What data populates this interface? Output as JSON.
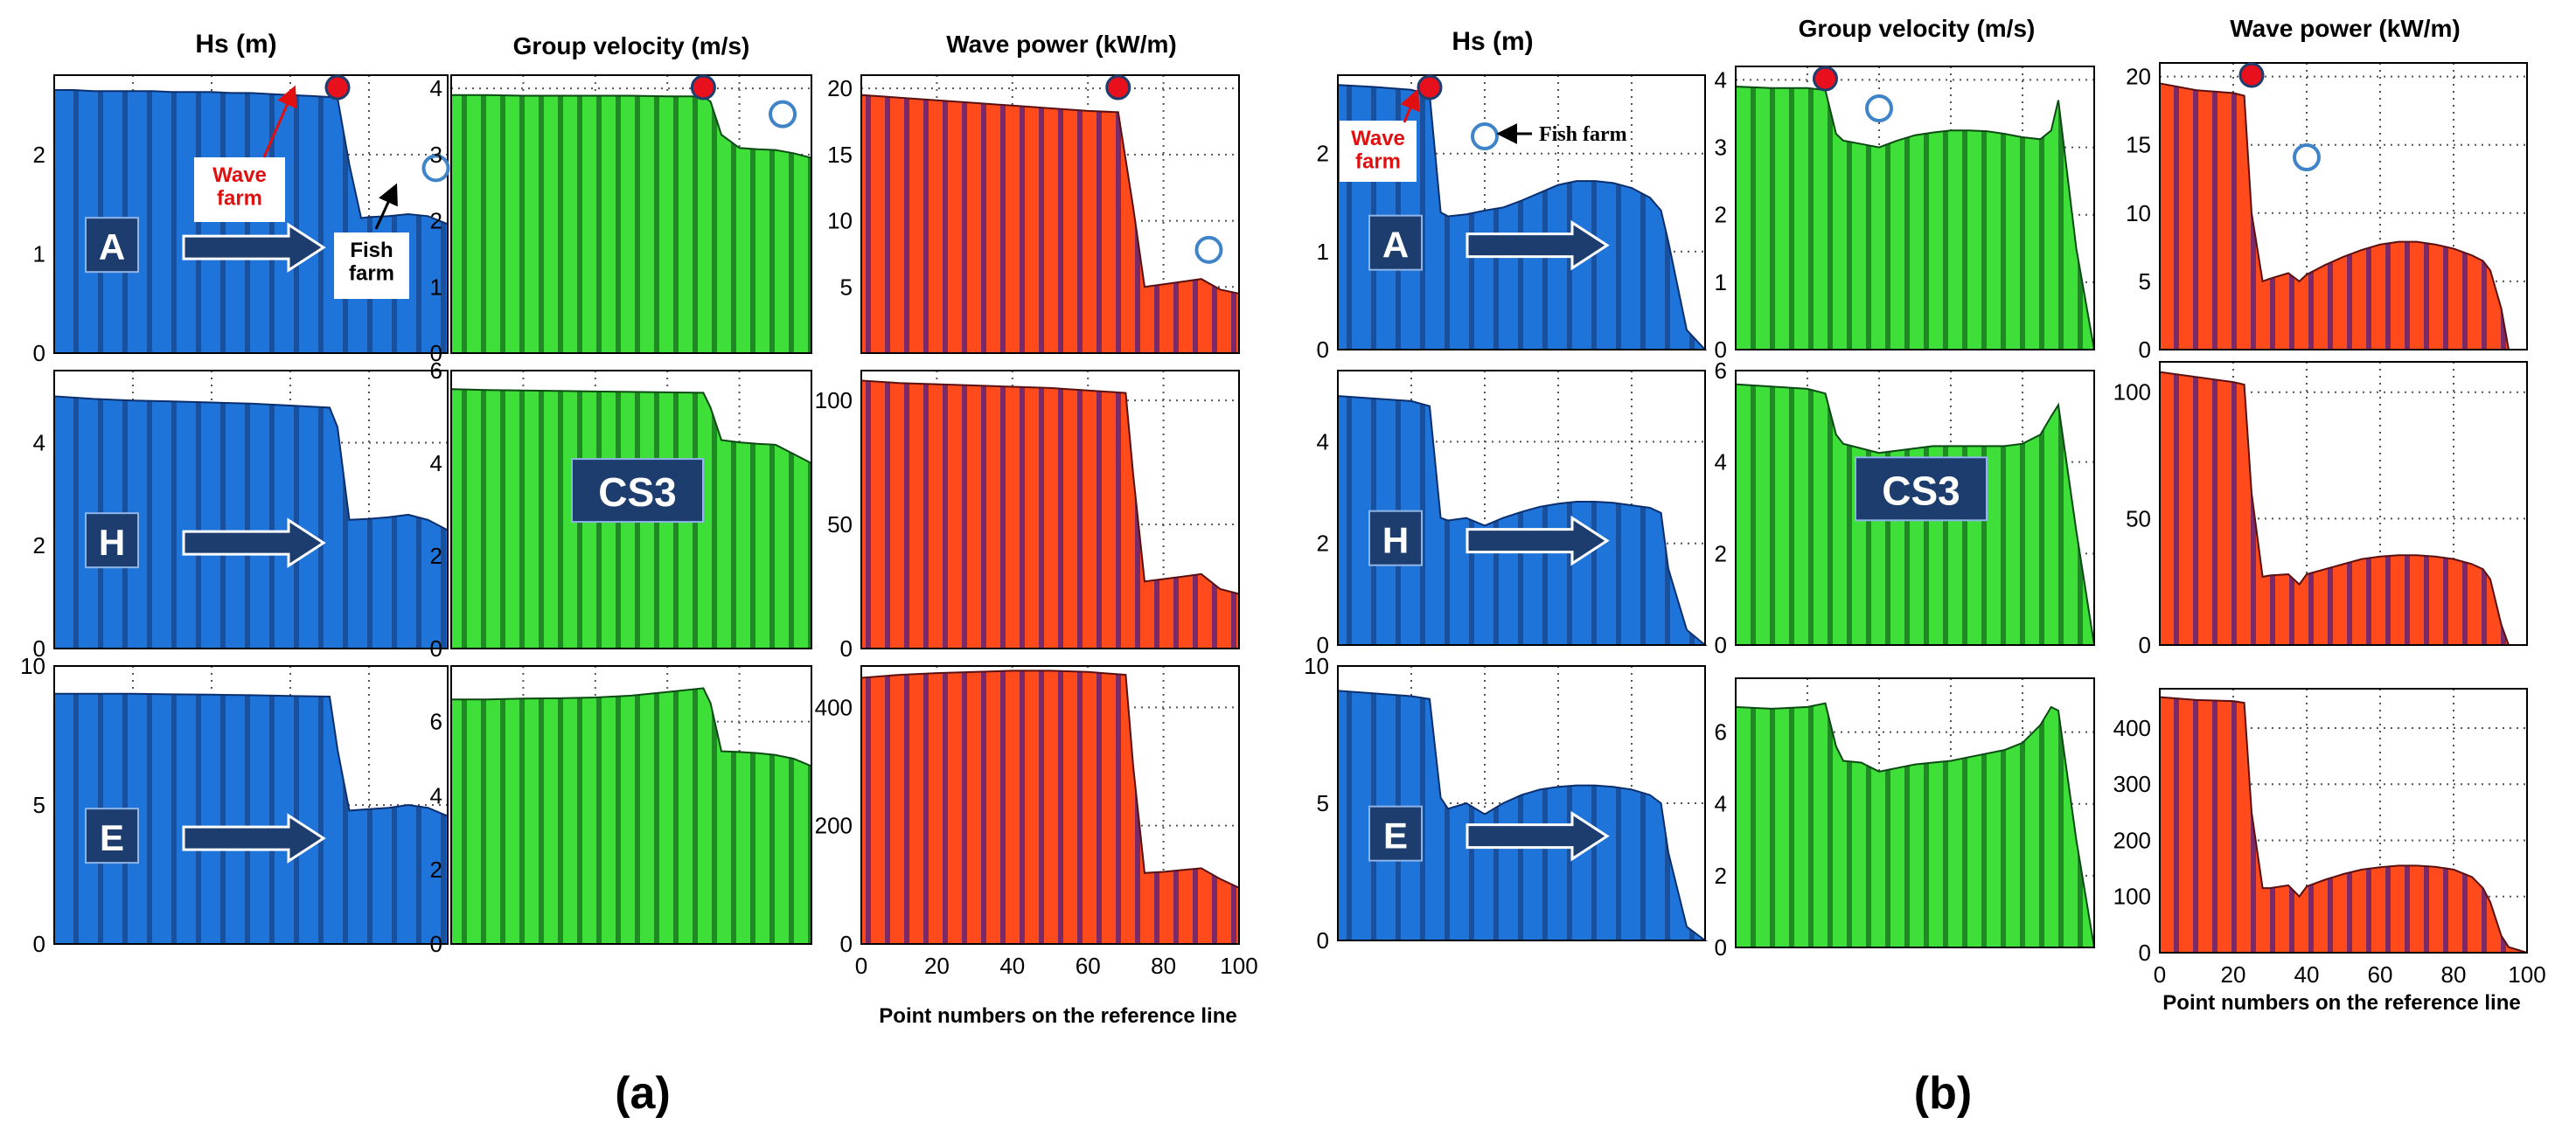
{
  "column_titles": {
    "hs": "Hs (m)",
    "cg": "Group velocity (m/s)",
    "wp": "Wave power (kW/m)"
  },
  "xlabel": "Point numbers on the reference line",
  "panel_labels": {
    "a": "(a)",
    "b": "(b)"
  },
  "case_labels": [
    "A",
    "H",
    "E"
  ],
  "cs_label": "CS3",
  "annotations": {
    "wave_farm": "Wave farm",
    "fish_farm": "Fish farm"
  },
  "colors": {
    "hs_fill": "#1e74d8",
    "hs_stripe": "#1a4f9c",
    "cg_fill": "#3fdf3a",
    "cg_stripe": "#1f8a24",
    "wp_fill": "#ff4a1c",
    "wp_stripe": "#7a2a66",
    "label_box": "#1d3d6e",
    "arrow": "#1d3d6e",
    "wave_farm_dot": "#e8101c",
    "fish_farm_ring": "#3f84c8",
    "annotation_red": "#e01010"
  },
  "chart_data": [
    {
      "type": "area",
      "title": "Hs (m)",
      "set": "a",
      "case": "A",
      "x": [
        0,
        5,
        10,
        15,
        20,
        25,
        30,
        35,
        40,
        45,
        50,
        55,
        60,
        65,
        70,
        72,
        75,
        78,
        80,
        85,
        90,
        95,
        100
      ],
      "values": [
        2.65,
        2.65,
        2.64,
        2.64,
        2.64,
        2.64,
        2.63,
        2.63,
        2.63,
        2.62,
        2.62,
        2.61,
        2.6,
        2.59,
        2.58,
        2.57,
        1.9,
        1.36,
        1.37,
        1.38,
        1.4,
        1.38,
        1.3
      ],
      "xlim": [
        0,
        100
      ],
      "ylim": [
        0,
        2.8
      ],
      "yticks": [
        0,
        1,
        2
      ],
      "annotations": {
        "wave_farm_x": 72,
        "fish_farm_x": 97
      }
    },
    {
      "type": "area",
      "title": "Group velocity (m/s)",
      "set": "a",
      "case": "A",
      "x": [
        0,
        10,
        20,
        30,
        40,
        50,
        60,
        70,
        72,
        75,
        80,
        85,
        90,
        95,
        100
      ],
      "values": [
        3.9,
        3.9,
        3.89,
        3.89,
        3.89,
        3.89,
        3.88,
        3.88,
        3.8,
        3.3,
        3.1,
        3.08,
        3.07,
        3.02,
        2.95
      ],
      "xlim": [
        0,
        100
      ],
      "ylim": [
        0,
        4.2
      ],
      "yticks": [
        0,
        1,
        2,
        3,
        4
      ],
      "annotations": {
        "wave_farm_x": 70,
        "fish_farm_x": 92
      }
    },
    {
      "type": "area",
      "title": "Wave power (kW/m)",
      "set": "a",
      "case": "A",
      "x": [
        0,
        10,
        20,
        30,
        40,
        50,
        60,
        68,
        72,
        75,
        80,
        85,
        90,
        95,
        100
      ],
      "values": [
        19.5,
        19.3,
        19.1,
        18.9,
        18.7,
        18.5,
        18.3,
        18.2,
        11.0,
        5.0,
        5.2,
        5.4,
        5.6,
        4.8,
        4.5
      ],
      "xlim": [
        0,
        100
      ],
      "ylim": [
        0,
        21
      ],
      "yticks": [
        5,
        10,
        15,
        20
      ],
      "annotations": {
        "wave_farm_x": 68,
        "fish_farm_x": 92
      }
    },
    {
      "type": "area",
      "title": "Hs (m)",
      "set": "a",
      "case": "H",
      "x": [
        0,
        10,
        20,
        30,
        40,
        50,
        60,
        70,
        72,
        75,
        80,
        85,
        90,
        95,
        100
      ],
      "values": [
        4.9,
        4.85,
        4.82,
        4.8,
        4.78,
        4.76,
        4.72,
        4.68,
        4.3,
        2.5,
        2.52,
        2.55,
        2.6,
        2.5,
        2.3
      ],
      "xlim": [
        0,
        100
      ],
      "ylim": [
        0,
        5.4
      ],
      "yticks": [
        0,
        2,
        4
      ]
    },
    {
      "type": "area",
      "title": "Group velocity (m/s)",
      "set": "a",
      "case": "H",
      "x": [
        0,
        10,
        20,
        30,
        40,
        50,
        60,
        70,
        72,
        75,
        80,
        85,
        90,
        95,
        100
      ],
      "values": [
        5.6,
        5.58,
        5.57,
        5.56,
        5.55,
        5.54,
        5.53,
        5.52,
        5.2,
        4.5,
        4.45,
        4.42,
        4.4,
        4.2,
        4.0
      ],
      "xlim": [
        0,
        100
      ],
      "ylim": [
        0,
        6
      ],
      "yticks": [
        0,
        2,
        4,
        6
      ]
    },
    {
      "type": "area",
      "title": "Wave power (kW/m)",
      "set": "a",
      "case": "H",
      "x": [
        0,
        10,
        20,
        30,
        40,
        50,
        60,
        70,
        72,
        75,
        80,
        85,
        90,
        95,
        100
      ],
      "values": [
        108,
        107,
        106.5,
        106,
        105.5,
        105,
        104,
        103,
        70,
        27,
        28,
        29,
        30,
        24,
        22
      ],
      "xlim": [
        0,
        100
      ],
      "ylim": [
        0,
        112
      ],
      "yticks": [
        0,
        50,
        100
      ]
    },
    {
      "type": "area",
      "title": "Hs (m)",
      "set": "a",
      "case": "E",
      "x": [
        0,
        10,
        20,
        30,
        40,
        50,
        60,
        70,
        72,
        75,
        80,
        85,
        90,
        95,
        100
      ],
      "values": [
        9.0,
        9.0,
        9.0,
        8.98,
        8.97,
        8.95,
        8.92,
        8.9,
        7.0,
        4.8,
        4.85,
        4.9,
        5.0,
        4.9,
        4.6
      ],
      "xlim": [
        0,
        100
      ],
      "ylim": [
        0,
        10
      ],
      "yticks": [
        0,
        5,
        10
      ]
    },
    {
      "type": "area",
      "title": "Group velocity (m/s)",
      "set": "a",
      "case": "E",
      "x": [
        0,
        10,
        20,
        30,
        40,
        50,
        60,
        70,
        72,
        75,
        80,
        85,
        90,
        95,
        100
      ],
      "values": [
        6.6,
        6.6,
        6.62,
        6.63,
        6.65,
        6.7,
        6.8,
        6.9,
        6.5,
        5.2,
        5.18,
        5.15,
        5.1,
        5.0,
        4.8
      ],
      "xlim": [
        0,
        100
      ],
      "ylim": [
        0,
        7.5
      ],
      "yticks": [
        0,
        2,
        4,
        6
      ]
    },
    {
      "type": "area",
      "title": "Wave power (kW/m)",
      "set": "a",
      "case": "E",
      "x": [
        0,
        10,
        20,
        30,
        40,
        50,
        60,
        70,
        72,
        75,
        80,
        85,
        90,
        95,
        100
      ],
      "values": [
        450,
        455,
        458,
        460,
        462,
        462,
        460,
        455,
        300,
        120,
        122,
        125,
        128,
        110,
        95
      ],
      "xlim": [
        0,
        100
      ],
      "ylim": [
        0,
        470
      ],
      "yticks": [
        0,
        200,
        400
      ],
      "xticks": [
        0,
        20,
        40,
        60,
        80,
        100
      ]
    },
    {
      "type": "area",
      "title": "Hs (m)",
      "set": "b",
      "case": "A",
      "x": [
        0,
        10,
        20,
        25,
        28,
        30,
        35,
        40,
        45,
        50,
        55,
        60,
        65,
        70,
        75,
        80,
        85,
        88,
        90,
        95,
        100
      ],
      "values": [
        2.7,
        2.68,
        2.65,
        2.6,
        1.4,
        1.36,
        1.38,
        1.42,
        1.45,
        1.52,
        1.6,
        1.68,
        1.72,
        1.72,
        1.7,
        1.65,
        1.55,
        1.42,
        1.1,
        0.2,
        0
      ],
      "xlim": [
        0,
        100
      ],
      "ylim": [
        0,
        2.8
      ],
      "yticks": [
        0,
        1,
        2
      ],
      "annotations": {
        "wave_farm_x": 25,
        "fish_farm_x": 40
      }
    },
    {
      "type": "area",
      "title": "Group velocity (m/s)",
      "set": "b",
      "case": "A",
      "x": [
        0,
        10,
        20,
        25,
        28,
        30,
        35,
        40,
        45,
        50,
        55,
        60,
        65,
        70,
        75,
        80,
        85,
        88,
        90,
        95,
        100
      ],
      "values": [
        3.9,
        3.88,
        3.88,
        3.85,
        3.2,
        3.1,
        3.05,
        3.0,
        3.1,
        3.18,
        3.22,
        3.25,
        3.25,
        3.24,
        3.2,
        3.15,
        3.12,
        3.25,
        3.7,
        1.5,
        0
      ],
      "xlim": [
        0,
        100
      ],
      "ylim": [
        0,
        4.2
      ],
      "yticks": [
        0,
        1,
        2,
        3,
        4
      ],
      "annotations": {
        "wave_farm_x": 25,
        "fish_farm_x": 40
      }
    },
    {
      "type": "area",
      "title": "Wave power (kW/m)",
      "set": "b",
      "case": "A",
      "x": [
        0,
        10,
        20,
        23,
        25,
        28,
        30,
        35,
        38,
        40,
        45,
        50,
        55,
        60,
        65,
        70,
        75,
        80,
        85,
        88,
        90,
        93,
        95
      ],
      "values": [
        19.5,
        19,
        18.8,
        18.6,
        10,
        5.0,
        5.2,
        5.6,
        5.0,
        5.5,
        6.2,
        6.8,
        7.3,
        7.7,
        7.9,
        7.9,
        7.7,
        7.4,
        6.9,
        6.5,
        5.8,
        3.0,
        0
      ],
      "xlim": [
        0,
        100
      ],
      "ylim": [
        0,
        21
      ],
      "yticks": [
        0,
        5,
        10,
        15,
        20
      ],
      "annotations": {
        "wave_farm_x": 25,
        "fish_farm_x": 40
      }
    },
    {
      "type": "area",
      "title": "Hs (m)",
      "set": "b",
      "case": "H",
      "x": [
        0,
        10,
        20,
        25,
        28,
        30,
        35,
        40,
        45,
        50,
        55,
        60,
        65,
        70,
        75,
        80,
        85,
        88,
        90,
        95,
        100
      ],
      "values": [
        4.9,
        4.85,
        4.8,
        4.7,
        2.5,
        2.45,
        2.5,
        2.35,
        2.5,
        2.62,
        2.72,
        2.78,
        2.82,
        2.82,
        2.8,
        2.75,
        2.7,
        2.6,
        1.5,
        0.3,
        0
      ],
      "xlim": [
        0,
        100
      ],
      "ylim": [
        0,
        5.4
      ],
      "yticks": [
        0,
        2,
        4
      ]
    },
    {
      "type": "area",
      "title": "Group velocity (m/s)",
      "set": "b",
      "case": "H",
      "x": [
        0,
        10,
        20,
        25,
        28,
        30,
        35,
        40,
        45,
        50,
        55,
        60,
        65,
        70,
        75,
        80,
        85,
        88,
        90,
        95,
        100
      ],
      "values": [
        5.7,
        5.65,
        5.6,
        5.5,
        4.6,
        4.4,
        4.3,
        4.2,
        4.25,
        4.3,
        4.35,
        4.35,
        4.35,
        4.35,
        4.35,
        4.4,
        4.6,
        5.0,
        5.25,
        2.5,
        0
      ],
      "xlim": [
        0,
        100
      ],
      "ylim": [
        0,
        6
      ],
      "yticks": [
        0,
        2,
        4,
        6
      ]
    },
    {
      "type": "area",
      "title": "Wave power (kW/m)",
      "set": "b",
      "case": "H",
      "x": [
        0,
        10,
        20,
        23,
        25,
        28,
        30,
        35,
        38,
        40,
        45,
        50,
        55,
        60,
        65,
        70,
        75,
        80,
        85,
        88,
        90,
        93,
        95
      ],
      "values": [
        108,
        106,
        104,
        103,
        60,
        27,
        27.5,
        28,
        24,
        28,
        30,
        32,
        34,
        35,
        35.5,
        35.5,
        35,
        34,
        32,
        30,
        26,
        8,
        0
      ],
      "xlim": [
        0,
        100
      ],
      "ylim": [
        0,
        112
      ],
      "yticks": [
        0,
        50,
        100
      ]
    },
    {
      "type": "area",
      "title": "Hs (m)",
      "set": "b",
      "case": "E",
      "x": [
        0,
        10,
        20,
        25,
        28,
        30,
        35,
        40,
        45,
        50,
        55,
        60,
        65,
        70,
        75,
        80,
        85,
        88,
        90,
        95,
        100
      ],
      "values": [
        9.1,
        9.0,
        8.9,
        8.8,
        5.2,
        4.8,
        5.0,
        4.6,
        5.0,
        5.3,
        5.5,
        5.6,
        5.65,
        5.65,
        5.6,
        5.5,
        5.3,
        5.0,
        3.2,
        0.5,
        0
      ],
      "xlim": [
        0,
        100
      ],
      "ylim": [
        0,
        10
      ],
      "yticks": [
        0,
        5,
        10
      ]
    },
    {
      "type": "area",
      "title": "Group velocity (m/s)",
      "set": "b",
      "case": "E",
      "x": [
        0,
        10,
        20,
        25,
        28,
        30,
        35,
        40,
        45,
        50,
        55,
        60,
        65,
        70,
        75,
        80,
        85,
        88,
        90,
        95,
        100
      ],
      "values": [
        6.7,
        6.65,
        6.7,
        6.8,
        5.6,
        5.2,
        5.15,
        4.9,
        5.0,
        5.1,
        5.15,
        5.2,
        5.3,
        5.4,
        5.5,
        5.7,
        6.2,
        6.7,
        6.6,
        3.0,
        0
      ],
      "xlim": [
        0,
        100
      ],
      "ylim": [
        0,
        7.5
      ],
      "yticks": [
        0,
        2,
        4,
        6
      ]
    },
    {
      "type": "area",
      "title": "Wave power (kW/m)",
      "set": "b",
      "case": "E",
      "x": [
        0,
        10,
        20,
        23,
        25,
        28,
        30,
        35,
        38,
        40,
        45,
        50,
        55,
        60,
        65,
        70,
        75,
        80,
        85,
        88,
        90,
        93,
        95,
        100
      ],
      "values": [
        455,
        450,
        448,
        445,
        250,
        115,
        115,
        120,
        100,
        118,
        130,
        140,
        148,
        152,
        155,
        155,
        153,
        148,
        135,
        115,
        90,
        30,
        10,
        0
      ],
      "xlim": [
        0,
        100
      ],
      "ylim": [
        0,
        470
      ],
      "yticks": [
        0,
        100,
        200,
        300,
        400
      ],
      "xticks": [
        0,
        20,
        40,
        60,
        80,
        100
      ]
    }
  ]
}
